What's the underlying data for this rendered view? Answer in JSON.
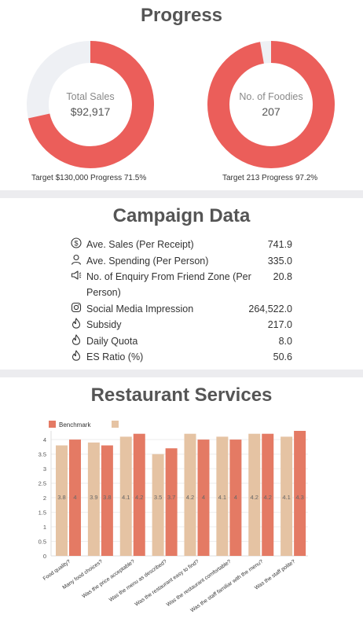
{
  "progress": {
    "title": "Progress",
    "total_sales": {
      "label": "Total Sales",
      "value": "$92,917",
      "target_text": "Target $130,000 Progress 71.5%",
      "fraction": 0.715
    },
    "foodies": {
      "label": "No. of Foodies",
      "value": "207",
      "target_text": "Target 213 Progress 97.2%",
      "fraction": 0.972
    }
  },
  "campaign": {
    "title": "Campaign Data",
    "rows": [
      {
        "icon": "dollar-circle-icon",
        "label": "Ave. Sales (Per Receipt)",
        "value": "741.9"
      },
      {
        "icon": "user-icon",
        "label": "Ave. Spending (Per Person)",
        "value": "335.0"
      },
      {
        "icon": "megaphone-icon",
        "label": "No. of Enquiry From Friend Zone (Per Person)",
        "value": "20.8"
      },
      {
        "icon": "instagram-icon",
        "label": "Social Media Impression",
        "value": "264,522.0"
      },
      {
        "icon": "flame-icon",
        "label": "Subsidy",
        "value": "217.0"
      },
      {
        "icon": "flame-icon",
        "label": "Daily Quota",
        "value": "8.0"
      },
      {
        "icon": "flame-icon",
        "label": "ES Ratio (%)",
        "value": "50.6"
      }
    ]
  },
  "services": {
    "title": "Restaurant Services"
  },
  "colors": {
    "accent": "#eb5e5a",
    "track": "#eef0f4",
    "bar_beige": "#e5c3a3",
    "bar_red": "#e47a64"
  },
  "chart_data": {
    "type": "bar",
    "categories": [
      "Food quality?",
      "Many food choices?",
      "Was the price acceptable?",
      "Was the menu as described?",
      "Was the restaurant easy to find?",
      "Was the restaurant comfortable?",
      "Was the staff familiar with the menu?",
      "Was the staff polite?"
    ],
    "series": [
      {
        "name": "",
        "color": "#e5c3a3",
        "values": [
          3.8,
          3.9,
          4.1,
          3.5,
          4.2,
          4.1,
          4.2,
          4.1
        ]
      },
      {
        "name": "Benchmark",
        "color": "#e47a64",
        "values": [
          4,
          3.8,
          4.2,
          3.7,
          4,
          4,
          4.2,
          4.3
        ]
      }
    ],
    "data_labels": [
      [
        "3.8",
        "3.9",
        "4.1",
        "3.5",
        "4.2",
        "4.1",
        "4.2",
        "4.1"
      ],
      [
        "4",
        "3.8",
        "4.2",
        "3.7",
        "4",
        "4",
        "4.2",
        "4.3"
      ]
    ],
    "y_ticks": [
      "0",
      "0.5",
      "1",
      "1.5",
      "2",
      "2.5",
      "3",
      "3.5",
      "4"
    ],
    "ylim": [
      0,
      4.3
    ],
    "legend": "top-left",
    "grid": true
  }
}
